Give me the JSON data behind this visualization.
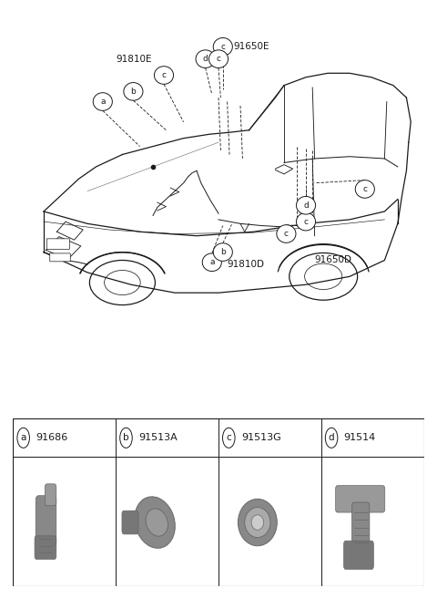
{
  "bg_color": "#ffffff",
  "line_color": "#1a1a1a",
  "part_labels": [
    {
      "letter": "a",
      "code": "91686"
    },
    {
      "letter": "b",
      "code": "91513A"
    },
    {
      "letter": "c",
      "code": "91513G"
    },
    {
      "letter": "d",
      "code": "91514"
    }
  ],
  "figsize": [
    4.8,
    6.56
  ],
  "dpi": 100,
  "car_lw": 0.9,
  "callout_r": 0.018,
  "callout_fontsize": 6.0,
  "label_fontsize": 7.5
}
